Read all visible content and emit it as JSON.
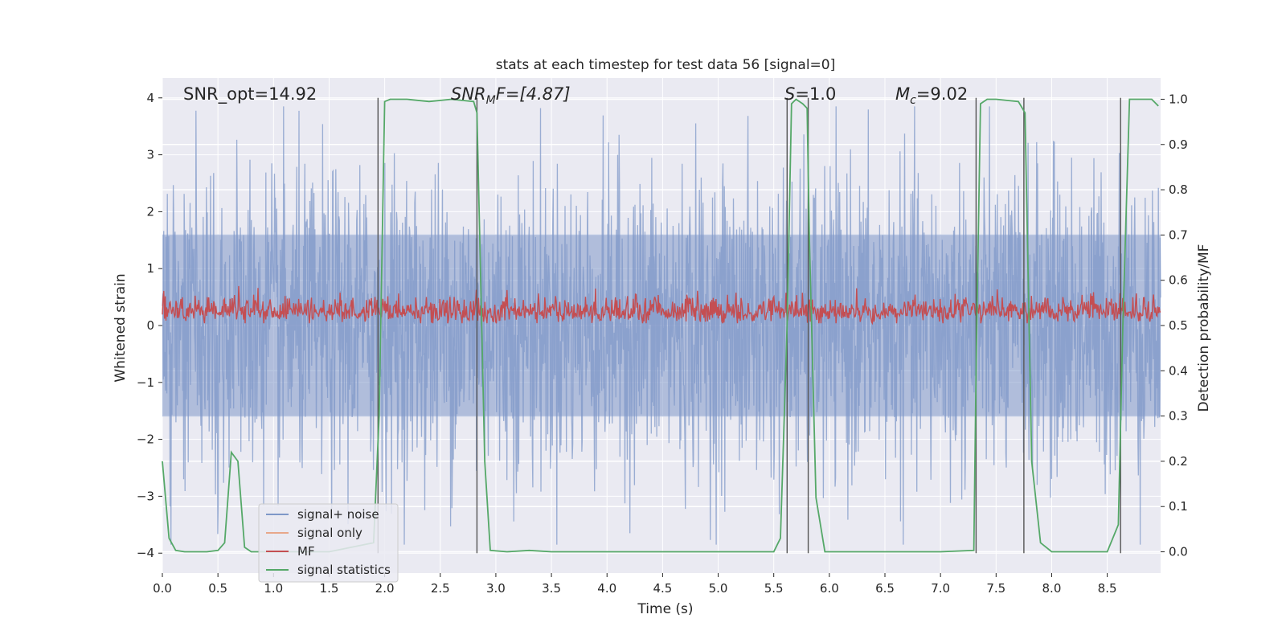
{
  "chart_data": {
    "type": "line",
    "title": "stats at each timestep for test data 56 [signal=0]",
    "xlabel": "Time (s)",
    "ylabel": "Whitened strain",
    "y2label": "Detection probability/MF",
    "xlim": [
      0.0,
      8.98
    ],
    "ylim": [
      -4.35,
      4.35
    ],
    "y2lim": [
      -0.047,
      1.047
    ],
    "x_ticks": [
      0.0,
      0.5,
      1.0,
      1.5,
      2.0,
      2.5,
      3.0,
      3.5,
      4.0,
      4.5,
      5.0,
      5.5,
      6.0,
      6.5,
      7.0,
      7.5,
      8.0,
      8.5
    ],
    "x_tick_labels": [
      "0.0",
      "0.5",
      "1.0",
      "1.5",
      "2.0",
      "2.5",
      "3.0",
      "3.5",
      "4.0",
      "4.5",
      "5.0",
      "5.5",
      "6.0",
      "6.5",
      "7.0",
      "7.5",
      "8.0",
      "8.5"
    ],
    "y_ticks": [
      -4,
      -3,
      -2,
      -1,
      0,
      1,
      2,
      3,
      4
    ],
    "y_tick_labels": [
      "−4",
      "−3",
      "−2",
      "−1",
      "0",
      "1",
      "2",
      "3",
      "4"
    ],
    "y2_ticks": [
      0.0,
      0.1,
      0.2,
      0.3,
      0.4,
      0.5,
      0.6,
      0.7,
      0.8,
      0.9,
      1.0
    ],
    "y2_tick_labels": [
      "0.0",
      "0.1",
      "0.2",
      "0.3",
      "0.4",
      "0.5",
      "0.6",
      "0.7",
      "0.8",
      "0.9",
      "1.0"
    ],
    "grid": true,
    "legend_position": "lower-left",
    "annotations": {
      "snr_opt": "SNR_opt=14.92",
      "snr_mf_main": "SNR",
      "snr_mf_sub": "M",
      "snr_mf_rest": "F=[4.87]",
      "s_italic": "S",
      "s_rest": "=1.0",
      "mc_main": "M",
      "mc_sub": "c",
      "mc_rest": "=9.02"
    },
    "series": [
      {
        "name": "signal+ noise",
        "axis": "left",
        "color": "#7f98c8",
        "description_values": {
          "amplitude_envelope": 3.8,
          "noise_sigma": 1.0
        }
      },
      {
        "name": "signal only",
        "axis": "left",
        "color": "#e8a88a",
        "values": []
      },
      {
        "name": "MF",
        "axis": "right",
        "color": "#c44e52",
        "description_values": {
          "mean": 0.53,
          "range": [
            0.5,
            0.59
          ]
        }
      },
      {
        "name": "signal statistics",
        "axis": "right",
        "color": "#55a868",
        "x": [
          0.0,
          0.06,
          0.12,
          0.2,
          0.4,
          0.5,
          0.56,
          0.62,
          0.68,
          0.74,
          0.8,
          1.0,
          1.5,
          1.9,
          1.95,
          2.0,
          2.05,
          2.2,
          2.4,
          2.6,
          2.8,
          2.83,
          2.9,
          2.95,
          3.1,
          3.3,
          3.5,
          4.0,
          5.0,
          5.5,
          5.56,
          5.62,
          5.66,
          5.7,
          5.76,
          5.8,
          5.82,
          5.88,
          5.96,
          6.1,
          6.5,
          7.0,
          7.3,
          7.32,
          7.36,
          7.42,
          7.5,
          7.7,
          7.76,
          7.82,
          7.9,
          8.0,
          8.5,
          8.6,
          8.64,
          8.7,
          8.8,
          8.9,
          8.96
        ],
        "values": [
          0.2,
          0.03,
          0.003,
          0.0,
          0.0,
          0.003,
          0.02,
          0.22,
          0.2,
          0.01,
          0.0,
          0.0,
          0.0,
          0.02,
          0.3,
          0.995,
          1.0,
          1.0,
          0.995,
          1.0,
          0.995,
          0.97,
          0.2,
          0.003,
          0.0,
          0.003,
          0.0,
          0.0,
          0.0,
          0.0,
          0.03,
          0.5,
          0.99,
          1.0,
          0.99,
          0.98,
          0.7,
          0.12,
          0.0,
          0.0,
          0.0,
          0.0,
          0.003,
          0.4,
          0.99,
          1.0,
          1.0,
          0.995,
          0.97,
          0.2,
          0.02,
          0.0,
          0.0,
          0.06,
          0.5,
          1.0,
          1.0,
          1.0,
          0.985
        ]
      }
    ],
    "event_lines_x": [
      1.94,
      2.83,
      5.62,
      5.81,
      7.32,
      7.75,
      8.62
    ]
  }
}
